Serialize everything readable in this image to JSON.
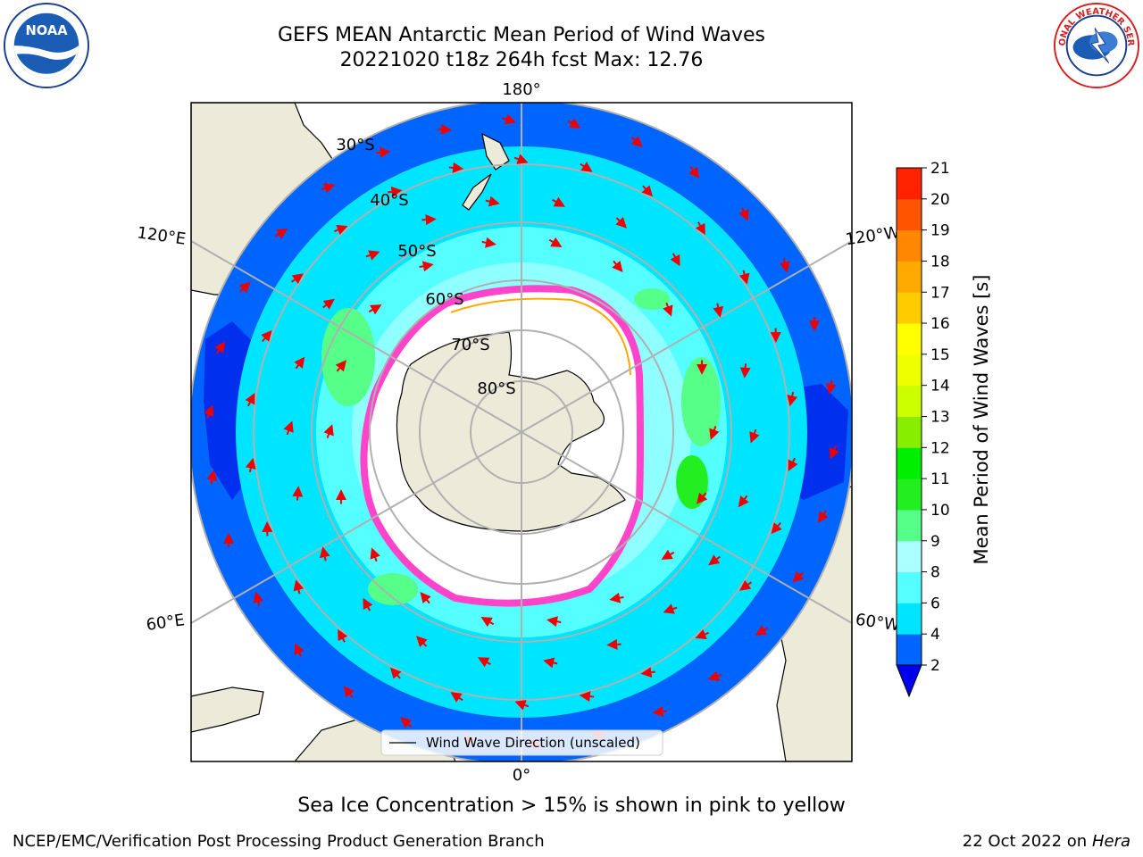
{
  "title": {
    "line1": "GEFS MEAN Antarctic Mean Period of Wind Waves",
    "line2": "20221020 t18z 264h fcst   Max: 12.76"
  },
  "map": {
    "projection": "south polar stereographic",
    "longitude_labels": {
      "top": "180°",
      "bottom": "0°",
      "left_upper": "120°E",
      "left_lower": "60°E",
      "right_upper": "120°W",
      "right_lower": "60°W"
    },
    "latitude_labels": [
      "30°S",
      "40°S",
      "50°S",
      "60°S",
      "70°S",
      "80°S"
    ],
    "legend": "Wind Wave Direction (unscaled)",
    "colors": {
      "land": "#ecebd9",
      "ice": "#ffffff",
      "ice_edge": "#ff44cc",
      "arrow": "#ee0000",
      "grid": "#b0b0b0"
    }
  },
  "colorbar": {
    "label": "Mean Period of Wind Waves [s]",
    "ticks": [
      "2",
      "4",
      "6",
      "8",
      "9",
      "10",
      "11",
      "12",
      "13",
      "14",
      "15",
      "16",
      "17",
      "18",
      "19",
      "20",
      "21"
    ],
    "colors": [
      "#0000ee",
      "#0064ff",
      "#00e5ff",
      "#55ffff",
      "#aaffff",
      "#55ff88",
      "#22ee22",
      "#00ee00",
      "#88ee00",
      "#ccff00",
      "#eeff00",
      "#ffff00",
      "#ffcc00",
      "#ffaa00",
      "#ff8800",
      "#ff5500",
      "#ff2200",
      "#ff0000"
    ]
  },
  "caption": "Sea Ice Concentration > 15% is shown in pink to yellow",
  "footer": {
    "left": "NCEP/EMC/Verification Post Processing Product Generation Branch",
    "right_date": "22 Oct 2022 on ",
    "right_host": "Hera"
  },
  "logos": {
    "noaa": "NOAA",
    "nws": "NATIONAL WEATHER SERVICE"
  }
}
